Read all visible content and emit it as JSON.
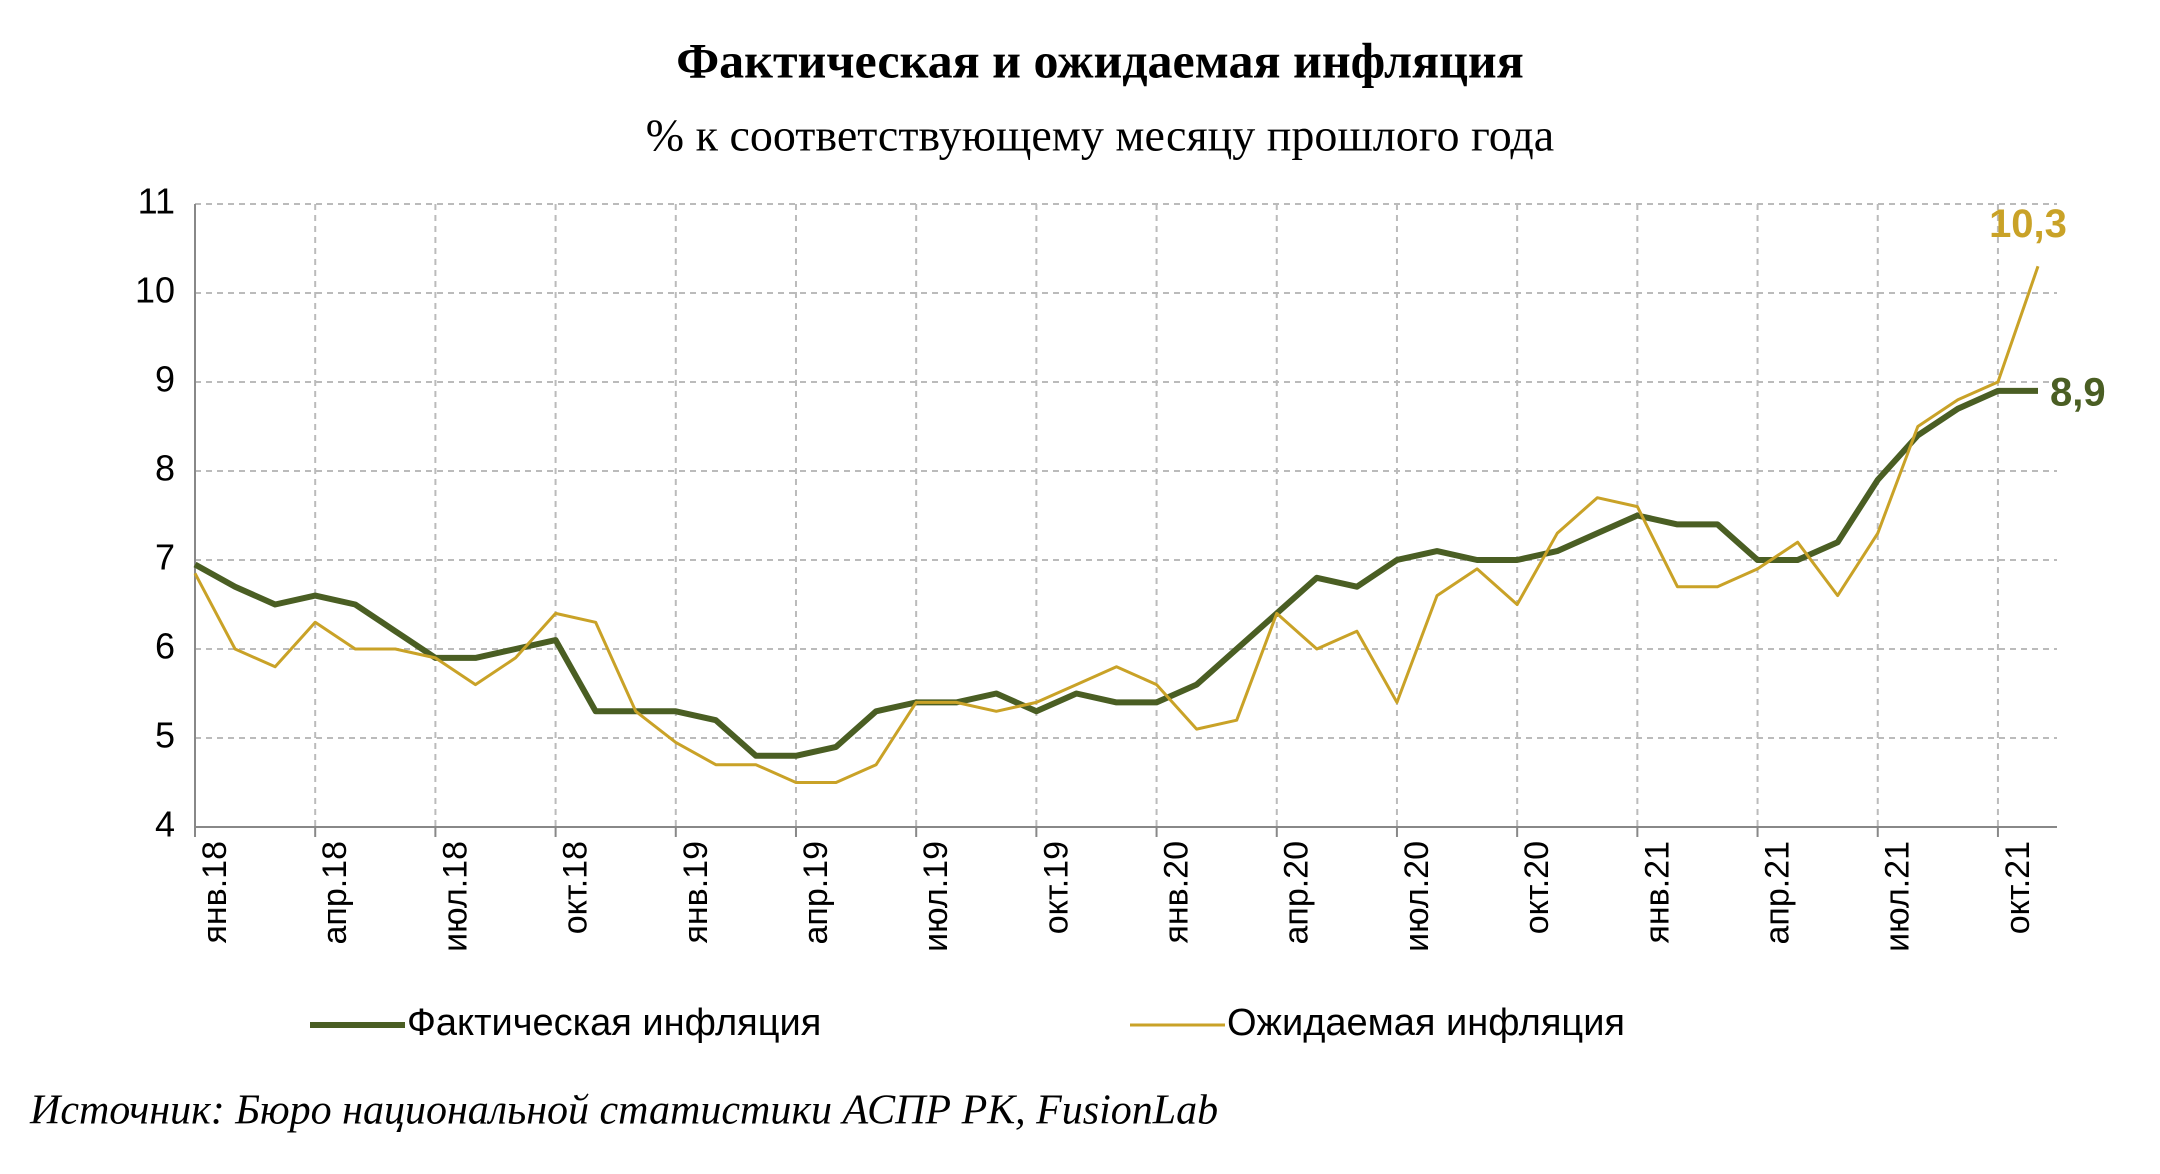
{
  "chart_data": {
    "type": "line",
    "title": "Фактическая и ожидаемая инфляция",
    "subtitle": "% к соответствующему месяцу прошлого года",
    "source": "Источник: Бюро национальной статистики АСПР РК, FusionLab",
    "categories": [
      "янв.18",
      null,
      null,
      "апр.18",
      null,
      null,
      "июл.18",
      null,
      null,
      "окт.18",
      null,
      null,
      "янв.19",
      null,
      null,
      "апр.19",
      null,
      null,
      "июл.19",
      null,
      null,
      "окт.19",
      null,
      null,
      "янв.20",
      null,
      null,
      "апр.20",
      null,
      null,
      "июл.20",
      null,
      null,
      "окт.20",
      null,
      null,
      "янв.21",
      null,
      null,
      "апр.21",
      null,
      null,
      "июл.21",
      null,
      null,
      "окт.21",
      null
    ],
    "series": [
      {
        "name": "Фактическая инфляция",
        "color": "#4a5e23",
        "width": 6,
        "values": [
          6.95,
          6.7,
          6.5,
          6.6,
          6.5,
          6.2,
          5.9,
          5.9,
          6.0,
          6.1,
          5.3,
          5.3,
          5.3,
          5.2,
          4.8,
          4.8,
          4.9,
          5.3,
          5.4,
          5.4,
          5.5,
          5.3,
          5.5,
          5.4,
          5.4,
          5.6,
          6.0,
          6.4,
          6.8,
          6.7,
          7.0,
          7.1,
          7.0,
          7.0,
          7.1,
          7.3,
          7.5,
          7.4,
          7.4,
          7.0,
          7.0,
          7.2,
          7.9,
          8.4,
          8.7,
          8.9,
          8.9
        ],
        "value_labels": [
          null,
          null,
          null,
          null,
          null,
          null,
          null,
          null,
          null,
          null,
          null,
          null,
          null,
          null,
          null,
          null,
          null,
          null,
          null,
          null,
          null,
          null,
          null,
          null,
          null,
          null,
          null,
          null,
          null,
          null,
          null,
          null,
          null,
          null,
          null,
          null,
          null,
          null,
          null,
          null,
          null,
          null,
          null,
          null,
          null,
          null,
          "8,9"
        ]
      },
      {
        "name": "Ожидаемая инфляция",
        "color": "#c9a227",
        "width": 3,
        "values": [
          6.85,
          6.0,
          5.8,
          6.3,
          6.0,
          6.0,
          5.9,
          5.6,
          5.9,
          6.4,
          6.3,
          5.3,
          4.95,
          4.7,
          4.7,
          4.5,
          4.5,
          4.7,
          5.4,
          5.4,
          5.3,
          5.4,
          5.6,
          5.8,
          5.6,
          5.1,
          5.2,
          6.4,
          6.0,
          6.2,
          5.4,
          6.6,
          6.9,
          6.5,
          7.3,
          7.7,
          7.6,
          6.7,
          6.7,
          6.9,
          7.2,
          6.6,
          7.3,
          8.5,
          8.8,
          9.0,
          10.3
        ],
        "value_labels": [
          null,
          null,
          null,
          null,
          null,
          null,
          null,
          null,
          null,
          null,
          null,
          null,
          null,
          null,
          null,
          null,
          null,
          null,
          null,
          null,
          null,
          null,
          null,
          null,
          null,
          null,
          null,
          null,
          null,
          null,
          null,
          null,
          null,
          null,
          null,
          null,
          null,
          null,
          null,
          null,
          null,
          null,
          null,
          null,
          null,
          null,
          "10,3"
        ]
      }
    ],
    "ylim": [
      4,
      11
    ],
    "yticks": [
      4,
      5,
      6,
      7,
      8,
      9,
      10,
      11
    ],
    "grid": true
  }
}
